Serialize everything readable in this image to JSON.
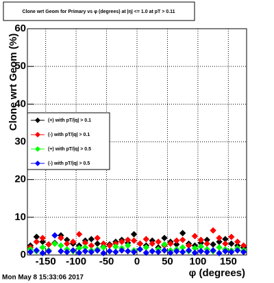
{
  "chart_data": {
    "type": "scatter",
    "title": "Clone wrt Geom for Primary vs φ (degrees) at |η| <= 1.0 at pT > 0.11",
    "x_label": "φ (degrees)",
    "y_label": "Clone wrt  Geom (%)",
    "footer": "Mon May  8 15:33:06 2017",
    "x": [
      -175,
      -165,
      -155,
      -145,
      -135,
      -125,
      -115,
      -105,
      -95,
      -85,
      -75,
      -65,
      -55,
      -45,
      -35,
      -25,
      -15,
      -5,
      5,
      15,
      25,
      35,
      45,
      55,
      65,
      75,
      85,
      95,
      105,
      115,
      125,
      135,
      145,
      155,
      165,
      175
    ],
    "series": [
      {
        "name": "(+) with pT/|q| > 0.1",
        "color": "#000000",
        "values": [
          2.5,
          4.8,
          3.5,
          2.8,
          3.2,
          5.2,
          4.0,
          3.0,
          2.5,
          3.8,
          4.2,
          3.0,
          2.2,
          2.8,
          3.5,
          4.0,
          3.2,
          5.5,
          3.0,
          2.5,
          3.8,
          2.0,
          4.5,
          3.5,
          2.8,
          5.8,
          3.0,
          2.5,
          3.2,
          4.0,
          2.8,
          3.5,
          4.2,
          3.0,
          2.5,
          2.0
        ]
      },
      {
        "name": "(-) with pT/|q| > 0.1",
        "color": "#ff0000",
        "values": [
          2.0,
          3.5,
          4.5,
          2.8,
          3.0,
          4.5,
          3.0,
          3.5,
          5.5,
          3.2,
          2.5,
          4.5,
          3.0,
          2.5,
          3.0,
          3.5,
          4.0,
          3.8,
          3.0,
          4.2,
          3.0,
          3.5,
          2.5,
          3.0,
          3.8,
          4.0,
          2.5,
          5.0,
          4.0,
          3.0,
          6.5,
          4.5,
          3.0,
          4.8,
          3.5,
          2.5
        ]
      },
      {
        "name": "(+) with pT/|q| > 0.5",
        "color": "#00ff00",
        "values": [
          1.5,
          1.0,
          2.0,
          1.2,
          3.0,
          2.5,
          1.5,
          1.0,
          1.8,
          2.0,
          1.2,
          1.5,
          2.0,
          1.0,
          2.2,
          1.8,
          2.5,
          1.2,
          1.5,
          2.0,
          1.0,
          1.5,
          2.8,
          1.2,
          1.5,
          2.0,
          1.0,
          1.8,
          2.2,
          1.5,
          1.0,
          2.0,
          1.5,
          1.2,
          1.8,
          1.2
        ]
      },
      {
        "name": "(-) with pT/|q| > 0.5",
        "color": "#0000ff",
        "values": [
          0.8,
          1.2,
          0.5,
          1.0,
          5.2,
          1.0,
          0.8,
          1.2,
          0.6,
          1.0,
          0.8,
          1.2,
          0.5,
          1.0,
          0.8,
          1.2,
          1.0,
          0.8,
          1.5,
          0.6,
          1.0,
          0.8,
          1.2,
          0.6,
          1.0,
          0.8,
          1.2,
          0.6,
          1.0,
          0.8,
          1.2,
          0.5,
          1.0,
          0.8,
          1.2,
          0.8
        ]
      }
    ],
    "xlim": [
      -180,
      180
    ],
    "xticks": [
      -150,
      -100,
      -50,
      0,
      50,
      100,
      150
    ],
    "ylim": [
      0,
      60
    ],
    "yticks": [
      0,
      10,
      20,
      30,
      40,
      50,
      60
    ],
    "grid": true
  }
}
